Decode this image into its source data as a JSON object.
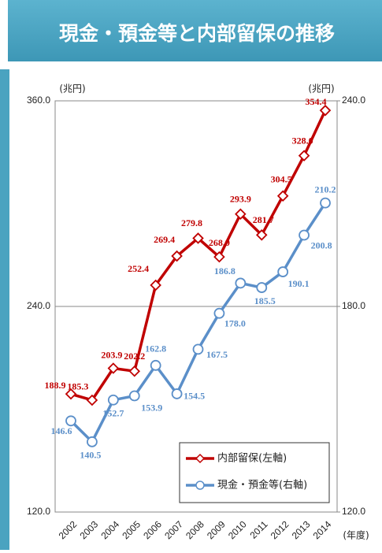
{
  "header": {
    "title": "現金・預金等と内部留保の推移"
  },
  "chart_data": {
    "type": "line",
    "y_unit": "(兆円)",
    "y2_unit": "(兆円)",
    "x_unit": "(年度)",
    "categories": [
      "2002",
      "2003",
      "2004",
      "2005",
      "2006",
      "2007",
      "2008",
      "2009",
      "2010",
      "2011",
      "2012",
      "2013",
      "2014"
    ],
    "ylim": [
      120,
      360
    ],
    "yticks": [
      {
        "value": 120,
        "label": "120.0"
      },
      {
        "value": 240,
        "label": "240.0"
      },
      {
        "value": 360,
        "label": "360.0"
      }
    ],
    "y2lim": [
      120,
      240
    ],
    "y2ticks": [
      {
        "value": 120,
        "label": "120.0"
      },
      {
        "value": 180,
        "label": "180.0"
      },
      {
        "value": 240,
        "label": "240.0"
      }
    ],
    "grid": true,
    "legend": "lower right",
    "series": [
      {
        "name": "内部留保(左軸)",
        "color": "#c00000",
        "marker": "diamond",
        "values": [
          188.9,
          185.3,
          203.9,
          202.2,
          252.4,
          269.4,
          279.8,
          268.9,
          293.9,
          281.7,
          304.5,
          328.0,
          354.4
        ],
        "value_labels": [
          "188.9",
          "185.3",
          "203.9",
          "202.2",
          "252.4",
          "269.4",
          "279.8",
          "268.9",
          "293.9",
          "281.7",
          "304.5",
          "328.0",
          "354.4"
        ]
      },
      {
        "name": "現金・預金等(右軸)",
        "color": "#5b8fc9",
        "marker": "circle",
        "axis": "y2",
        "values": [
          146.6,
          140.5,
          152.7,
          153.9,
          162.8,
          154.5,
          167.5,
          178.0,
          186.8,
          185.5,
          190.1,
          200.8,
          210.2
        ],
        "value_labels": [
          "146.6",
          "140.5",
          "152.7",
          "153.9",
          "162.8",
          "154.5",
          "167.5",
          "178.0",
          "186.8",
          "185.5",
          "190.1",
          "200.8",
          "210.2"
        ]
      }
    ]
  }
}
